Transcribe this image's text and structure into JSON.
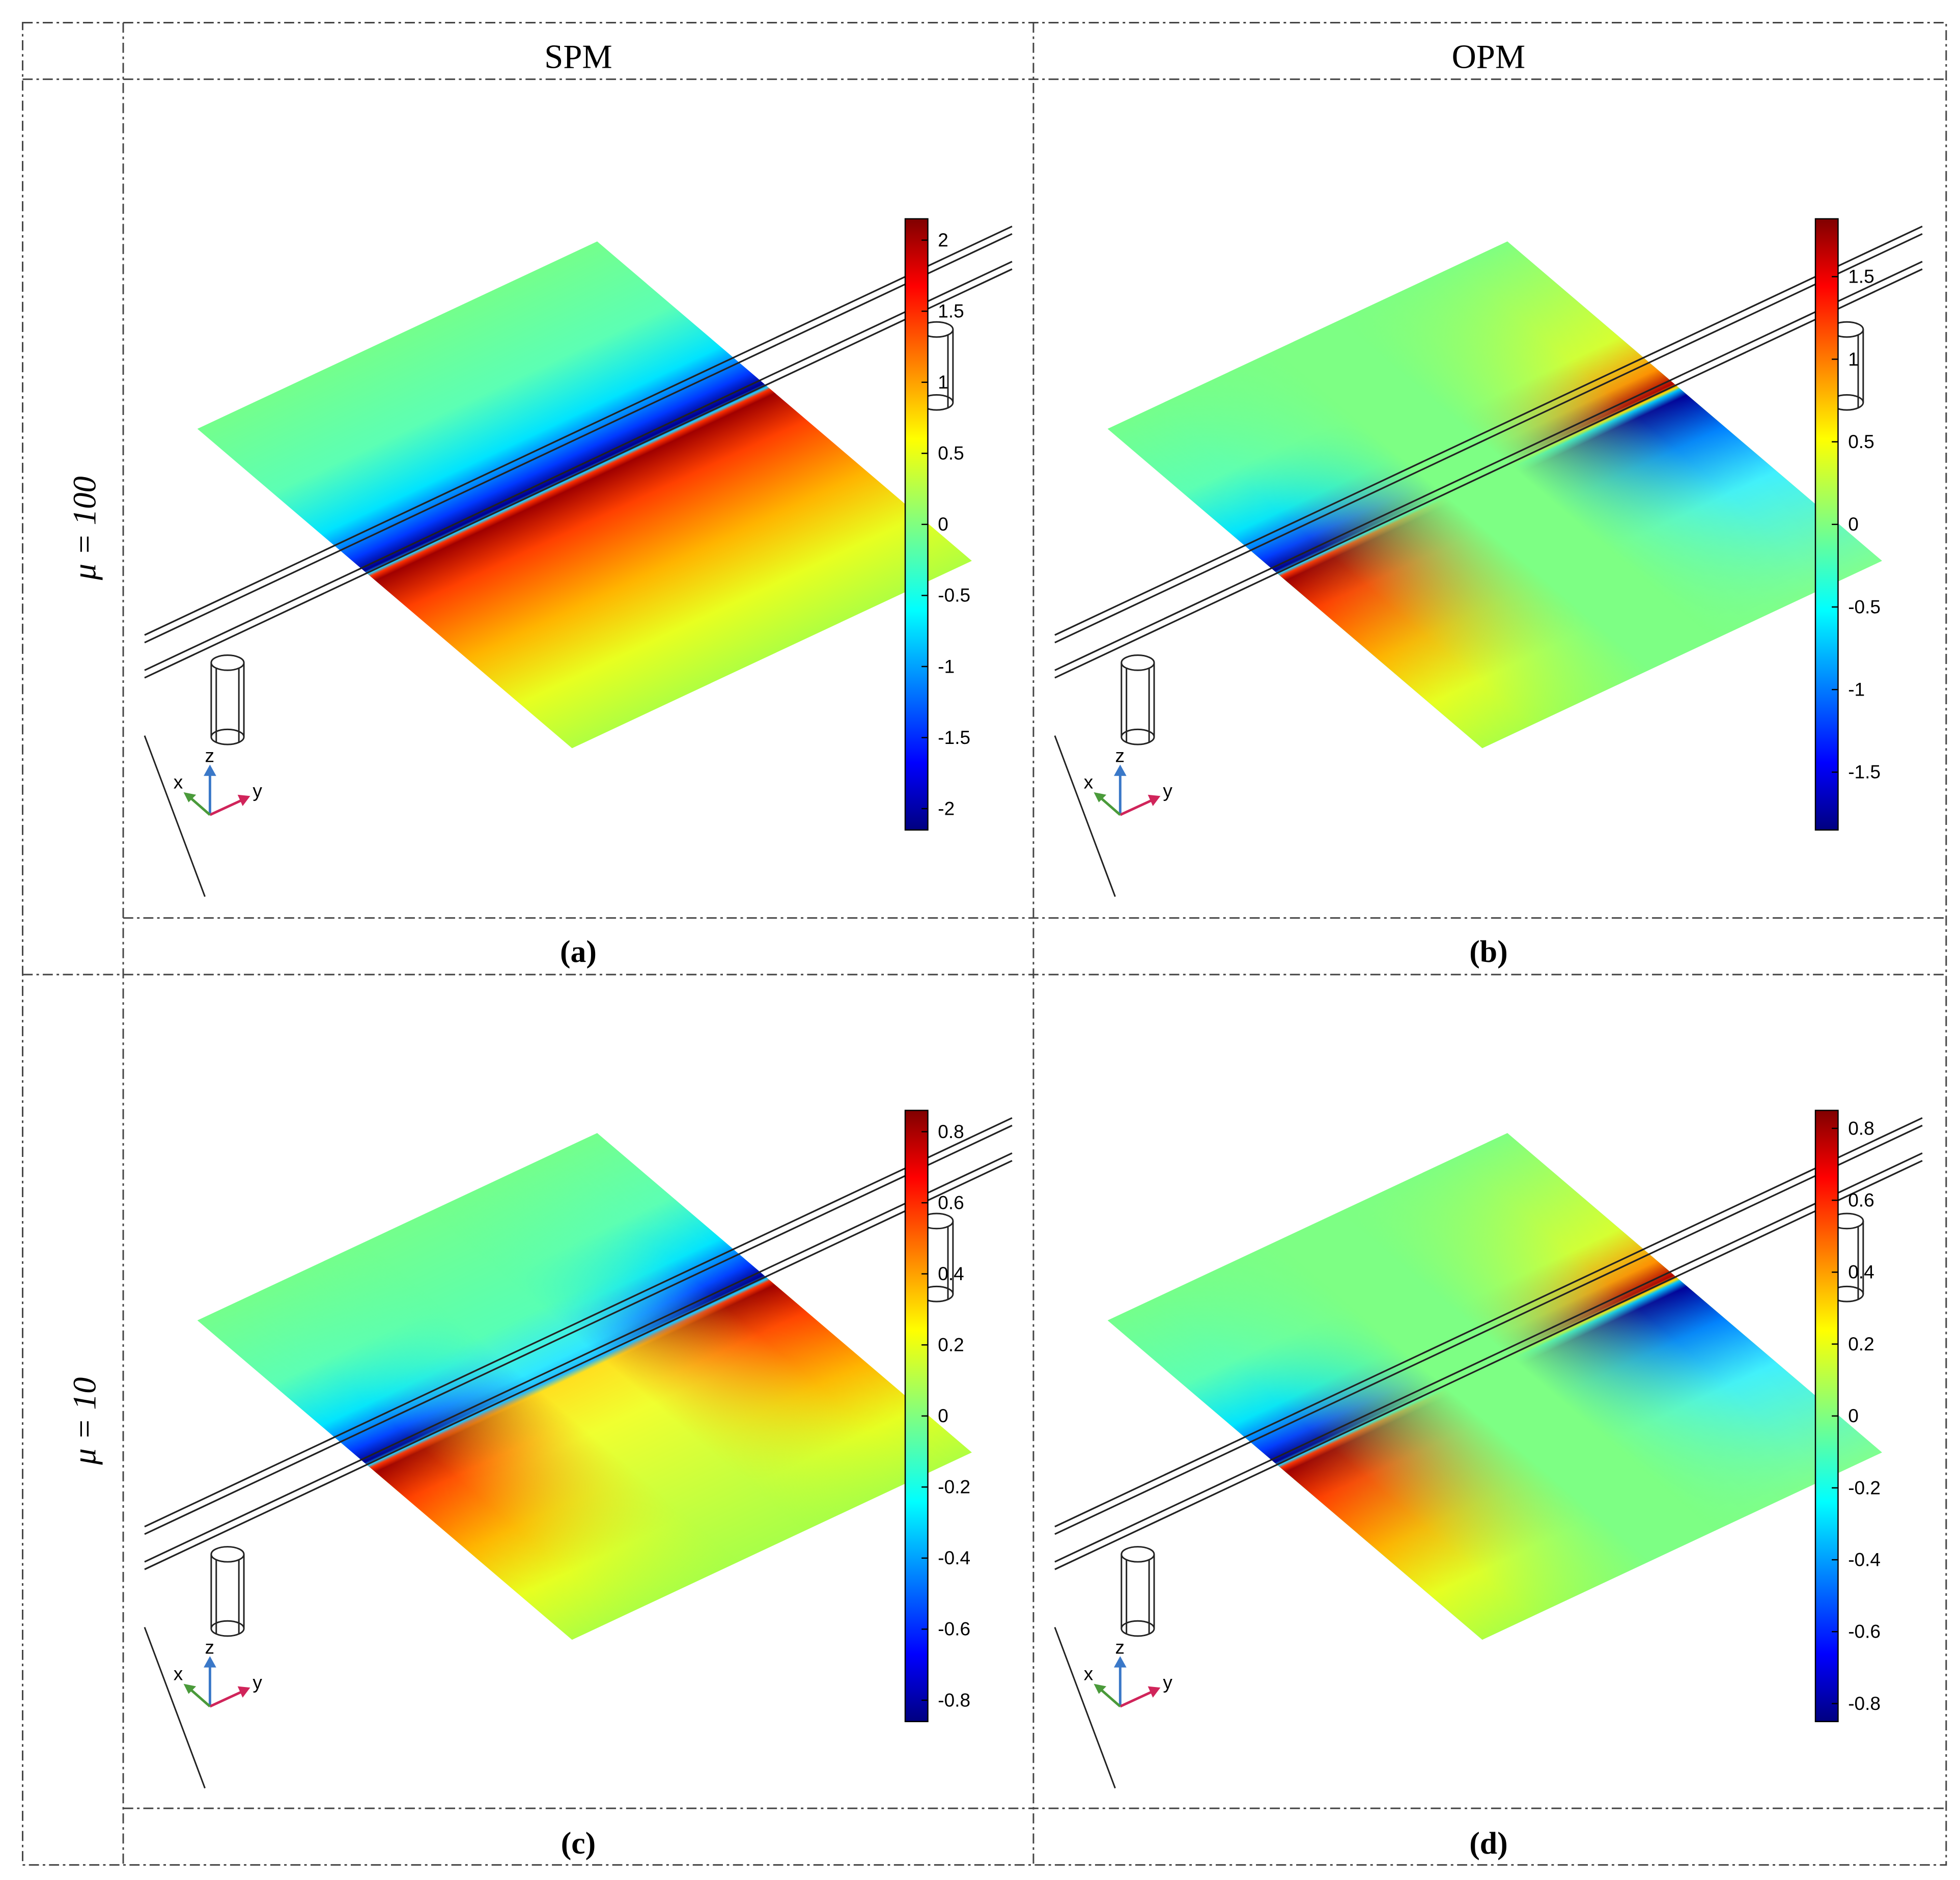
{
  "columns": [
    "SPM",
    "OPM"
  ],
  "rows": [
    "μ = 100",
    "μ = 10"
  ],
  "panels": [
    {
      "label": "(a)",
      "colorbar": {
        "lim": [
          -2.15,
          2.15
        ],
        "ticks": [
          -2,
          -1.5,
          -1,
          -0.5,
          0,
          0.5,
          1,
          1.5,
          2
        ]
      },
      "axes": [
        "x",
        "y",
        "z"
      ]
    },
    {
      "label": "(b)",
      "colorbar": {
        "lim": [
          -1.85,
          1.85
        ],
        "ticks": [
          -1.5,
          -1,
          -0.5,
          0,
          0.5,
          1,
          1.5
        ]
      },
      "axes": [
        "x",
        "y",
        "z"
      ]
    },
    {
      "label": "(c)",
      "colorbar": {
        "lim": [
          -0.86,
          0.86
        ],
        "ticks": [
          -0.8,
          -0.6,
          -0.4,
          -0.2,
          0,
          0.2,
          0.4,
          0.6,
          0.8
        ]
      },
      "axes": [
        "x",
        "y",
        "z"
      ]
    },
    {
      "label": "(d)",
      "colorbar": {
        "lim": [
          -0.85,
          0.85
        ],
        "ticks": [
          -0.8,
          -0.6,
          -0.4,
          -0.2,
          0,
          0.2,
          0.4,
          0.6,
          0.8
        ]
      },
      "axes": [
        "x",
        "y",
        "z"
      ]
    }
  ]
}
